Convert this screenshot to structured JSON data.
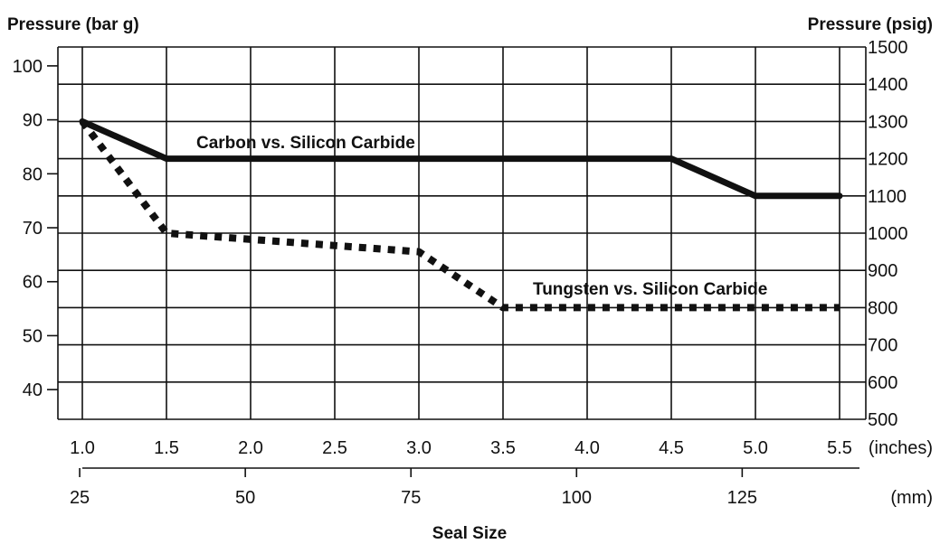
{
  "chart_data": {
    "type": "line",
    "left_axis": {
      "label": "Pressure (bar g)",
      "ticks": [
        40,
        50,
        60,
        70,
        80,
        90,
        100
      ],
      "range": [
        34.5,
        103.5
      ]
    },
    "right_axis": {
      "label": "Pressure (psig)",
      "ticks": [
        500,
        600,
        700,
        800,
        900,
        1000,
        1100,
        1200,
        1300,
        1400,
        1500
      ],
      "range": [
        500,
        1500
      ]
    },
    "x_axis_inches": {
      "unit_label": "(inches)",
      "ticks": [
        "1.0",
        "1.5",
        "2.0",
        "2.5",
        "3.0",
        "3.5",
        "4.0",
        "4.5",
        "5.0",
        "5.5"
      ],
      "range": [
        1.0,
        5.5
      ]
    },
    "x_axis_mm": {
      "unit_label": "(mm)",
      "ticks": [
        "25",
        "50",
        "75",
        "100",
        "125"
      ],
      "range": [
        25.4,
        139.7
      ]
    },
    "xlabel": "Seal Size",
    "grid": true,
    "series": [
      {
        "name": "Carbon vs. Silicon Carbide",
        "style": "solid",
        "color": "#111111",
        "x": [
          1.0,
          1.5,
          4.5,
          5.0,
          5.5
        ],
        "y_psig": [
          1300,
          1200,
          1200,
          1100,
          1100
        ]
      },
      {
        "name": "Tungsten vs. Silicon Carbide",
        "style": "dotted",
        "color": "#111111",
        "x": [
          1.0,
          1.5,
          3.0,
          3.5,
          5.5
        ],
        "y_psig": [
          1300,
          1000,
          950,
          800,
          800
        ]
      }
    ]
  }
}
